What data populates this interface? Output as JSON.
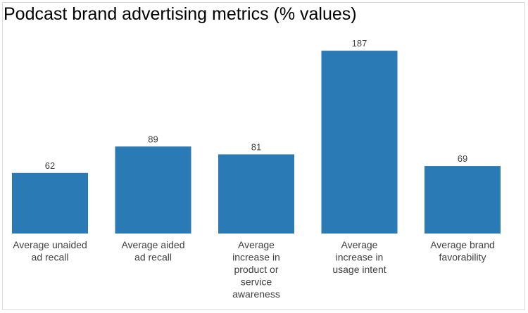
{
  "chart_data": {
    "type": "bar",
    "title": "Podcast brand advertising metrics (% values)",
    "xlabel": "",
    "ylabel": "",
    "categories": [
      "Average unaided ad recall",
      "Average aided ad recall",
      "Average increase in product or service awareness",
      "Average increase in usage intent",
      "Average brand favorability"
    ],
    "category_lines": [
      [
        "Average unaided",
        "ad recall"
      ],
      [
        "Average aided",
        "ad recall"
      ],
      [
        "Average",
        "increase in",
        "product or",
        "service",
        "awareness"
      ],
      [
        "Average",
        "increase in",
        "usage intent"
      ],
      [
        "Average brand",
        "favorability"
      ]
    ],
    "values": [
      62,
      89,
      81,
      187,
      69
    ],
    "ylim": [
      0,
      200
    ],
    "grid": false,
    "legend": "none",
    "bar_color": "#2a7ab6"
  }
}
